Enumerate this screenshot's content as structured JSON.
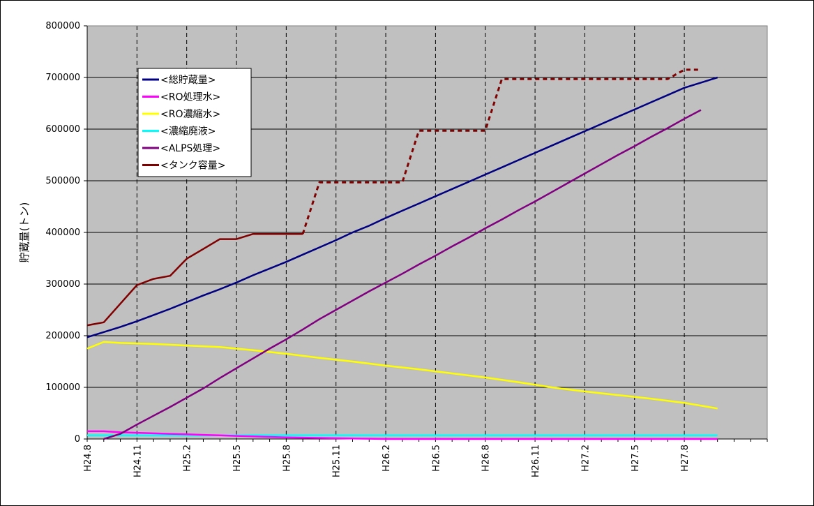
{
  "chart_data": {
    "type": "line",
    "ylabel": "貯蔵量(トン)",
    "ylim": [
      0,
      800000
    ],
    "yticks": [
      0,
      100000,
      200000,
      300000,
      400000,
      500000,
      600000,
      700000,
      800000
    ],
    "ytick_labels": [
      "0",
      "100000",
      "200000",
      "300000",
      "400000",
      "500000",
      "600000",
      "700000",
      "800000"
    ],
    "xlim": [
      0,
      41
    ],
    "xtick_labels": [
      "H24.8",
      "H24.11",
      "H25.2",
      "H25.5",
      "H25.8",
      "H25.11",
      "H26.2",
      "H26.5",
      "H26.8",
      "H26.11",
      "H27.2",
      "H27.5",
      "H27.8"
    ],
    "xtick_positions": [
      0,
      3,
      6,
      9,
      12,
      15,
      18,
      21,
      24,
      27,
      30,
      33,
      36
    ],
    "grid": "horizontal solid, vertical dashed",
    "plot_background": "#c0c0c0",
    "legend_position": "upper-left",
    "series": [
      {
        "name": "<総貯蔵量>",
        "color": "#000080",
        "style": "solid",
        "points": [
          [
            0,
            197000
          ],
          [
            1,
            207000
          ],
          [
            2,
            217000
          ],
          [
            3,
            228000
          ],
          [
            4,
            240000
          ],
          [
            5,
            252000
          ],
          [
            6,
            265000
          ],
          [
            7,
            278000
          ],
          [
            8,
            290000
          ],
          [
            9,
            303000
          ],
          [
            10,
            317000
          ],
          [
            11,
            330000
          ],
          [
            12,
            343000
          ],
          [
            13,
            357000
          ],
          [
            14,
            371000
          ],
          [
            15,
            385000
          ],
          [
            16,
            400000
          ],
          [
            17,
            413000
          ],
          [
            18,
            428000
          ],
          [
            19,
            442000
          ],
          [
            20,
            456000
          ],
          [
            21,
            470000
          ],
          [
            22,
            484000
          ],
          [
            23,
            498000
          ],
          [
            24,
            512000
          ],
          [
            25,
            526000
          ],
          [
            26,
            540000
          ],
          [
            27,
            554000
          ],
          [
            28,
            568000
          ],
          [
            29,
            582000
          ],
          [
            30,
            596000
          ],
          [
            31,
            610000
          ],
          [
            32,
            624000
          ],
          [
            33,
            638000
          ],
          [
            34,
            652000
          ],
          [
            35,
            666000
          ],
          [
            36,
            680000
          ],
          [
            37,
            690000
          ],
          [
            38,
            700000
          ]
        ]
      },
      {
        "name": "<RO処理水>",
        "color": "#ff00ff",
        "style": "solid",
        "points": [
          [
            0,
            15000
          ],
          [
            1,
            15000
          ],
          [
            2,
            13000
          ],
          [
            3,
            12000
          ],
          [
            4,
            11000
          ],
          [
            5,
            10000
          ],
          [
            6,
            9000
          ],
          [
            7,
            8000
          ],
          [
            8,
            7000
          ],
          [
            9,
            6000
          ],
          [
            10,
            5000
          ],
          [
            11,
            4000
          ],
          [
            12,
            3000
          ],
          [
            13,
            2500
          ],
          [
            14,
            2000
          ],
          [
            15,
            1500
          ],
          [
            16,
            1000
          ],
          [
            17,
            500
          ],
          [
            18,
            0
          ],
          [
            38,
            0
          ]
        ]
      },
      {
        "name": "<RO濃縮水>",
        "color": "#ffff00",
        "style": "solid",
        "points": [
          [
            0,
            175000
          ],
          [
            1,
            188000
          ],
          [
            2,
            186000
          ],
          [
            4,
            184000
          ],
          [
            6,
            181000
          ],
          [
            8,
            178000
          ],
          [
            10,
            172000
          ],
          [
            12,
            165000
          ],
          [
            14,
            157000
          ],
          [
            16,
            150000
          ],
          [
            18,
            142000
          ],
          [
            20,
            135000
          ],
          [
            22,
            127000
          ],
          [
            24,
            119000
          ],
          [
            26,
            110000
          ],
          [
            28,
            100000
          ],
          [
            30,
            92000
          ],
          [
            32,
            85000
          ],
          [
            34,
            78000
          ],
          [
            36,
            70000
          ],
          [
            38,
            59000
          ]
        ]
      },
      {
        "name": "<濃縮廃液>",
        "color": "#00ffff",
        "style": "solid",
        "points": [
          [
            0,
            7000
          ],
          [
            5,
            7000
          ],
          [
            10,
            7000
          ],
          [
            15,
            7000
          ],
          [
            20,
            7000
          ],
          [
            25,
            7000
          ],
          [
            30,
            7000
          ],
          [
            35,
            7000
          ],
          [
            38,
            7000
          ]
        ]
      },
      {
        "name": "<ALPS処理>",
        "color": "#800080",
        "style": "solid",
        "points": [
          [
            1,
            0
          ],
          [
            2,
            10000
          ],
          [
            3,
            28000
          ],
          [
            4,
            45000
          ],
          [
            5,
            62000
          ],
          [
            6,
            80000
          ],
          [
            7,
            98000
          ],
          [
            8,
            118000
          ],
          [
            9,
            137000
          ],
          [
            10,
            156000
          ],
          [
            11,
            175000
          ],
          [
            12,
            193000
          ],
          [
            13,
            212000
          ],
          [
            14,
            232000
          ],
          [
            15,
            250000
          ],
          [
            16,
            268000
          ],
          [
            17,
            286000
          ],
          [
            18,
            303000
          ],
          [
            19,
            320000
          ],
          [
            20,
            338000
          ],
          [
            21,
            355000
          ],
          [
            22,
            373000
          ],
          [
            23,
            390000
          ],
          [
            24,
            408000
          ],
          [
            25,
            425000
          ],
          [
            26,
            443000
          ],
          [
            27,
            460000
          ],
          [
            28,
            478000
          ],
          [
            29,
            496000
          ],
          [
            30,
            514000
          ],
          [
            31,
            532000
          ],
          [
            32,
            550000
          ],
          [
            33,
            567000
          ],
          [
            34,
            585000
          ],
          [
            35,
            602000
          ],
          [
            36,
            620000
          ],
          [
            37,
            637000
          ]
        ]
      },
      {
        "name": "<タンク容量>",
        "color": "#800000",
        "style": "solid",
        "points": [
          [
            0,
            220000
          ],
          [
            1,
            226000
          ],
          [
            2,
            262000
          ],
          [
            3,
            298000
          ],
          [
            4,
            310000
          ],
          [
            5,
            316000
          ],
          [
            6,
            349000
          ],
          [
            7,
            368000
          ],
          [
            8,
            387000
          ],
          [
            9,
            387000
          ],
          [
            10,
            397000
          ],
          [
            11,
            397000
          ],
          [
            12,
            397000
          ],
          [
            13,
            397000
          ]
        ]
      },
      {
        "name": "<タンク容量>(計画)",
        "color": "#800000",
        "style": "dashed",
        "points": [
          [
            13,
            397000
          ],
          [
            14,
            497000
          ],
          [
            15,
            497000
          ],
          [
            16,
            497000
          ],
          [
            17,
            497000
          ],
          [
            18,
            497000
          ],
          [
            19,
            497000
          ],
          [
            20,
            597000
          ],
          [
            21,
            597000
          ],
          [
            22,
            597000
          ],
          [
            23,
            597000
          ],
          [
            24,
            597000
          ],
          [
            25,
            697000
          ],
          [
            26,
            697000
          ],
          [
            27,
            697000
          ],
          [
            28,
            697000
          ],
          [
            29,
            697000
          ],
          [
            30,
            697000
          ],
          [
            31,
            697000
          ],
          [
            32,
            697000
          ],
          [
            33,
            697000
          ],
          [
            34,
            697000
          ],
          [
            35,
            697000
          ],
          [
            36,
            715000
          ],
          [
            37,
            715000
          ]
        ]
      }
    ],
    "legend": [
      "<総貯蔵量>",
      "<RO処理水>",
      "<RO濃縮水>",
      "<濃縮廃液>",
      "<ALPS処理>",
      "<タンク容量>"
    ]
  }
}
